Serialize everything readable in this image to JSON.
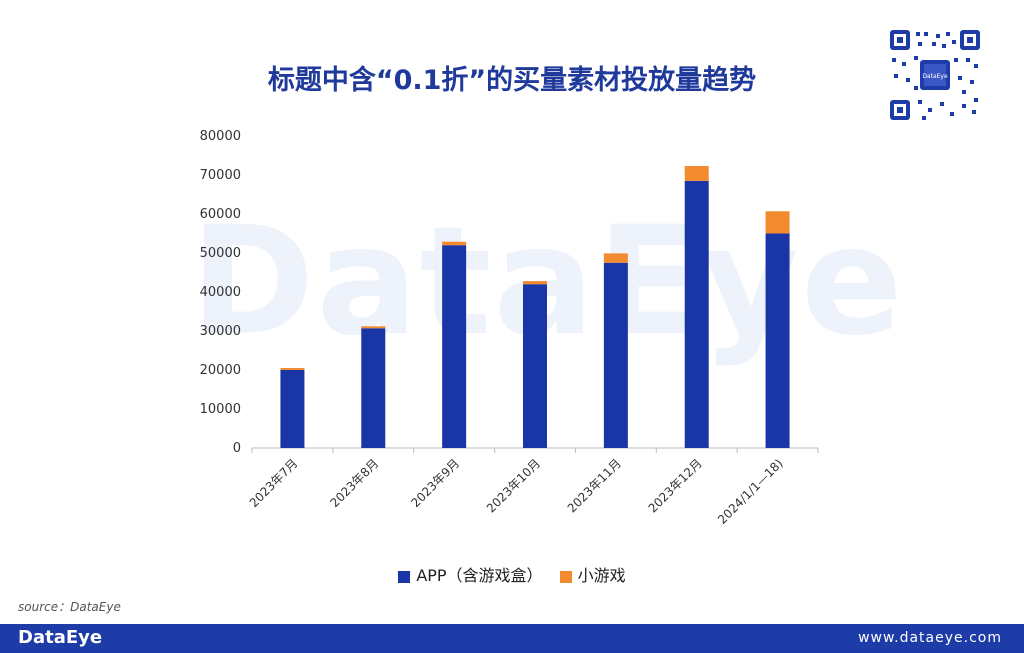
{
  "watermark": "DataEye",
  "source": "source：DataEye",
  "footer": {
    "logo": "DataEye",
    "url": "www.dataeye.com"
  },
  "colors": {
    "app": "#1a35a5",
    "mini": "#f28a30",
    "title": "#1f3a9b",
    "footer": "#1e3ca8"
  },
  "chart_data": {
    "type": "bar",
    "stacked": true,
    "title": "标题中含“0.1折”的买量素材投放量趋势",
    "categories": [
      "2023年7月",
      "2023年8月",
      "2023年9月",
      "2023年10月",
      "2023年11月",
      "2023年12月",
      "2024/1/1—18)"
    ],
    "series": [
      {
        "name": "APP（含游戏盒）",
        "values": [
          20000,
          30700,
          52000,
          42000,
          47500,
          68500,
          55000
        ]
      },
      {
        "name": "小游戏",
        "values": [
          500,
          500,
          900,
          800,
          2400,
          3800,
          5700
        ]
      }
    ],
    "yticks": [
      0,
      10000,
      20000,
      30000,
      40000,
      50000,
      60000,
      70000,
      80000
    ],
    "ylim": [
      0,
      80000
    ],
    "legend_position": "bottom",
    "grid": false
  }
}
